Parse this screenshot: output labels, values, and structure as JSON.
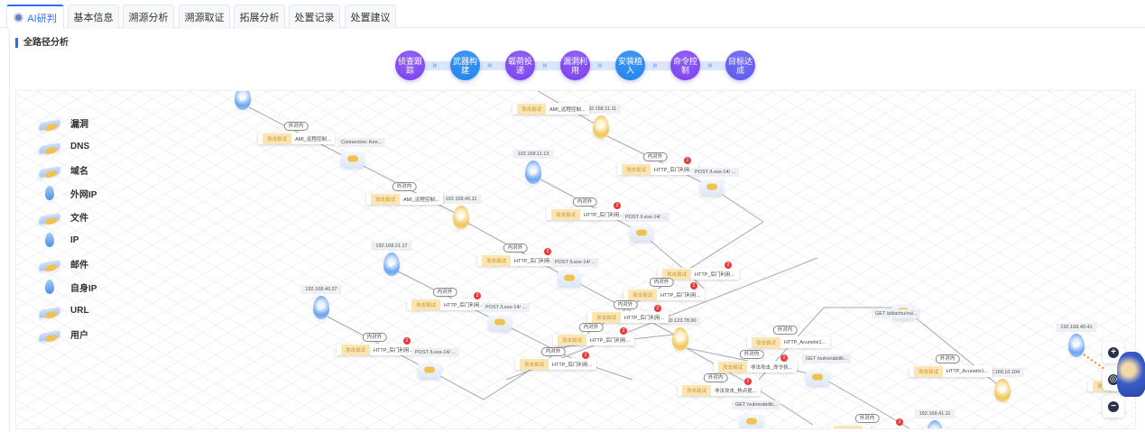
{
  "tabs": [
    {
      "label": "AI研判",
      "active": true,
      "icon": "ai-avatar-icon"
    },
    {
      "label": "基本信息"
    },
    {
      "label": "溯源分析"
    },
    {
      "label": "溯源取证"
    },
    {
      "label": "拓展分析"
    },
    {
      "label": "处置记录"
    },
    {
      "label": "处置建议"
    }
  ],
  "section_title": "全路径分析",
  "stages": [
    {
      "label": "侦查跟踪",
      "color": "#7a3ef0"
    },
    {
      "label": "武器构建",
      "color": "#1a82f0"
    },
    {
      "label": "载荷投递",
      "color": "#7a3ef0"
    },
    {
      "label": "漏洞利用",
      "color": "#7a3ef0"
    },
    {
      "label": "安装植入",
      "color": "#1a82f0"
    },
    {
      "label": "命令控制",
      "color": "#7a3ef0"
    },
    {
      "label": "目标达成",
      "color": "#5a55f0"
    }
  ],
  "legend": [
    {
      "label": "漏洞",
      "icon": "cube"
    },
    {
      "label": "DNS",
      "icon": "cube"
    },
    {
      "label": "域名",
      "icon": "cube"
    },
    {
      "label": "外网IP",
      "icon": "pin"
    },
    {
      "label": "文件",
      "icon": "cube"
    },
    {
      "label": "IP",
      "icon": "pin"
    },
    {
      "label": "邮件",
      "icon": "cube"
    },
    {
      "label": "自身IP",
      "icon": "pin"
    },
    {
      "label": "URL",
      "icon": "cube"
    },
    {
      "label": "用户",
      "icon": "cube"
    }
  ],
  "ip_nodes": [
    {
      "label": "",
      "color": "blue"
    },
    {
      "label": "192.168.11.11",
      "color": "yellow"
    },
    {
      "label": "192.168.40.11",
      "color": "yellow"
    },
    {
      "label": "192.168.11.13",
      "color": "blue"
    },
    {
      "label": "192.168.21.17",
      "color": "blue"
    },
    {
      "label": "192.168.40.37",
      "color": "blue"
    },
    {
      "label": "210.123.78.90",
      "color": "yellow"
    },
    {
      "label": "192.168.40.41",
      "color": "blue"
    },
    {
      "label": "192.168.10.104",
      "color": "yellow"
    },
    {
      "label": "192.168.41.11",
      "color": "blue"
    }
  ],
  "ip_glyph": "IP",
  "cards": [
    {
      "tag": "攻击尝试",
      "text": "AMI_远程控制...",
      "dir": "外对内",
      "badge": "",
      "sub": "Connection: Kee..."
    },
    {
      "tag": "攻击尝试",
      "text": "AMI_远程控制...",
      "dir": "外对内",
      "badge": "",
      "sub": ""
    },
    {
      "tag": "攻击尝试",
      "text": "AMI_远程控制...",
      "dir": "",
      "badge": "",
      "sub": ""
    },
    {
      "tag": "攻击尝试",
      "text": "HTTP_后门利用...",
      "dir": "内对外",
      "badge": "2",
      "sub": "POST /Less-14/ ..."
    },
    {
      "tag": "攻击尝试",
      "text": "HTTP_后门利用...",
      "dir": "内对外",
      "badge": "2",
      "sub": "POST /Less-14/ ..."
    },
    {
      "tag": "攻击尝试",
      "text": "HTTP_后门利用...",
      "dir": "内对外",
      "badge": "2",
      "sub": "POST /Less-14/ ..."
    },
    {
      "tag": "攻击尝试",
      "text": "HTTP_后门利用...",
      "dir": "内对外",
      "badge": "2",
      "sub": "POST /Less-14/ ..."
    },
    {
      "tag": "攻击尝试",
      "text": "HTTP_后门利用...",
      "dir": "内对外",
      "badge": "2",
      "sub": "POST /Less-14/ ..."
    },
    {
      "tag": "攻击尝试",
      "text": "HTTP_后门利用...",
      "dir": "",
      "badge": "2",
      "sub": ""
    },
    {
      "tag": "攻击尝试",
      "text": "HTTP_后门利用...",
      "dir": "内对外",
      "badge": "2",
      "sub": ""
    },
    {
      "tag": "攻击尝试",
      "text": "HTTP_后门利用...",
      "dir": "内对外",
      "badge": "2",
      "sub": ""
    },
    {
      "tag": "攻击尝试",
      "text": "HTTP_后门利用...",
      "dir": "内对外",
      "badge": "2",
      "sub": ""
    },
    {
      "tag": "攻击尝试",
      "text": "HTTP_后门利用...",
      "dir": "内对外",
      "badge": "2",
      "sub": ""
    },
    {
      "tag": "攻击尝试",
      "text": "HTTP_Acunetix1...",
      "dir": "外对内",
      "badge": "",
      "sub": "GET /pikachu/vul..."
    },
    {
      "tag": "攻击尝试",
      "text": "非法攻击_命令执...",
      "dir": "外对内",
      "badge": "2",
      "sub": "GET /vulnerabiliti..."
    },
    {
      "tag": "攻击尝试",
      "text": "非法攻击_热点提...",
      "dir": "外对内",
      "badge": "2",
      "sub": "GET /vulnerabiliti..."
    },
    {
      "tag": "攻击尝试",
      "text": "HTTP_Acunetix1...",
      "dir": "外对内",
      "badge": "",
      "sub": ""
    },
    {
      "tag": "攻击尝试",
      "text": "",
      "dir": "外对内",
      "badge": "2",
      "sub": ""
    },
    {
      "tag": "攻击",
      "text": "",
      "dir": "内对外",
      "badge": "",
      "sub": ""
    }
  ],
  "zoom_controls": {
    "in": "+",
    "center": "◎",
    "out": "−"
  }
}
